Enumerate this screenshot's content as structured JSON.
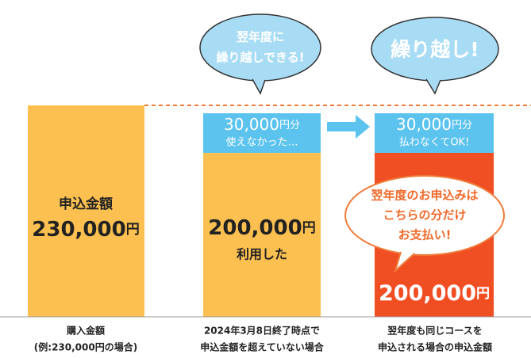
{
  "bubbles": [
    {
      "lines": [
        "翌年度に",
        "繰り越しできる!"
      ]
    },
    {
      "lines": [
        "繰り越し!"
      ]
    }
  ],
  "columns": [
    {
      "title": "申込金額",
      "amount": "230,000",
      "unit": "円",
      "caption": [
        "購入金額",
        "(例:230,000円の場合)"
      ]
    },
    {
      "top_amount": "30,000",
      "top_unit": "円分",
      "top_note": "使えなかった…",
      "amount": "200,000",
      "unit": "円",
      "note": "利用した",
      "caption": [
        "2024年3月8日終了時点で",
        "申込金額を超えていない場合"
      ]
    },
    {
      "top_amount": "30,000",
      "top_unit": "円分",
      "top_note": "払わなくてOK!",
      "callout": [
        "翌年度のお申込みは",
        "こちらの分だけ",
        "お支払い!"
      ],
      "amount": "200,000",
      "unit": "円",
      "caption": [
        "翌年度も同じコースを",
        "申込される場合の申込金額"
      ]
    }
  ]
}
